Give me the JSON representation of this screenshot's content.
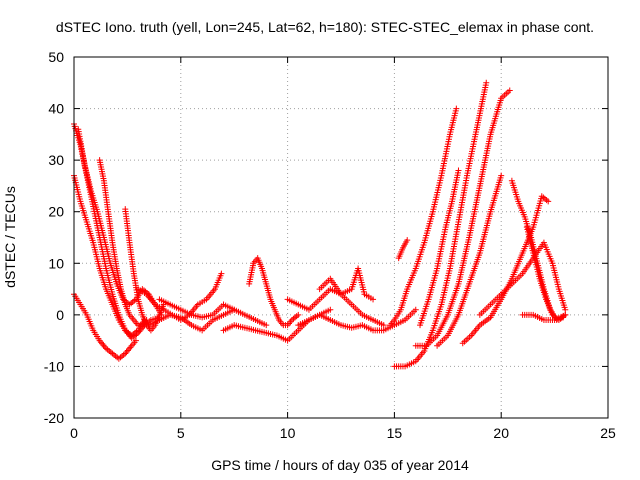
{
  "chart_data": {
    "type": "scatter",
    "title": "dSTEC Iono. truth (yell, Lon=245, Lat=62, h=180): STEC-STEC_elemax in phase cont.",
    "xlabel": "GPS time / hours of day 035 of year 2014",
    "ylabel": "dSTEC  / TECUs",
    "xlim": [
      0,
      25
    ],
    "ylim": [
      -20,
      50
    ],
    "xticks": [
      0,
      5,
      10,
      15,
      20,
      25
    ],
    "yticks": [
      -20,
      -10,
      0,
      10,
      20,
      30,
      40,
      50
    ],
    "grid": true,
    "marker": "+",
    "color": "#ff0000",
    "series": [
      {
        "values": [
          [
            0.0,
            37
          ],
          [
            0.3,
            33
          ],
          [
            0.6,
            27
          ],
          [
            0.9,
            21
          ],
          [
            1.2,
            15
          ],
          [
            1.5,
            9
          ],
          [
            1.8,
            4
          ],
          [
            2.1,
            0
          ],
          [
            2.4,
            -3
          ],
          [
            2.7,
            -4.5
          ],
          [
            3.0,
            -3.5
          ],
          [
            3.3,
            -2
          ],
          [
            3.6,
            -1
          ],
          [
            4.0,
            -0.5
          ]
        ]
      },
      {
        "values": [
          [
            0.0,
            27
          ],
          [
            0.3,
            22
          ],
          [
            0.6,
            18
          ],
          [
            0.9,
            14
          ],
          [
            1.2,
            9
          ],
          [
            1.5,
            5
          ],
          [
            1.8,
            2
          ],
          [
            2.1,
            -1
          ],
          [
            2.4,
            -3
          ],
          [
            2.7,
            -4
          ],
          [
            3.0,
            -3
          ],
          [
            3.3,
            -1
          ]
        ]
      },
      {
        "values": [
          [
            0.2,
            36
          ],
          [
            0.5,
            29
          ],
          [
            0.8,
            24
          ],
          [
            1.1,
            20
          ],
          [
            1.4,
            15
          ],
          [
            1.7,
            10
          ],
          [
            2.0,
            6
          ],
          [
            2.3,
            3
          ],
          [
            2.6,
            2
          ],
          [
            2.9,
            3
          ],
          [
            3.2,
            5
          ],
          [
            3.5,
            4
          ],
          [
            3.8,
            2
          ],
          [
            4.1,
            0
          ]
        ]
      },
      {
        "values": [
          [
            0.0,
            4
          ],
          [
            0.3,
            2
          ],
          [
            0.6,
            0
          ],
          [
            0.9,
            -3
          ],
          [
            1.2,
            -5
          ],
          [
            1.5,
            -6.5
          ],
          [
            1.8,
            -7.5
          ],
          [
            2.1,
            -8.5
          ],
          [
            2.4,
            -7.5
          ],
          [
            2.7,
            -6
          ],
          [
            2.9,
            -5
          ]
        ]
      },
      {
        "values": [
          [
            1.2,
            30
          ],
          [
            1.4,
            26
          ],
          [
            1.6,
            20
          ],
          [
            1.8,
            14
          ],
          [
            2.0,
            9
          ],
          [
            2.2,
            5
          ],
          [
            2.4,
            2
          ],
          [
            2.6,
            0
          ],
          [
            2.8,
            -1
          ],
          [
            3.0,
            -2
          ],
          [
            3.2,
            -2
          ],
          [
            3.4,
            -1
          ]
        ]
      },
      {
        "values": [
          [
            2.4,
            20.5
          ],
          [
            2.6,
            14
          ],
          [
            2.8,
            8
          ],
          [
            3.0,
            3
          ],
          [
            3.2,
            0
          ],
          [
            3.4,
            -2
          ],
          [
            3.6,
            -3
          ],
          [
            3.8,
            -2
          ],
          [
            4.0,
            0
          ],
          [
            4.2,
            2
          ]
        ]
      },
      {
        "values": [
          [
            3.0,
            5
          ],
          [
            3.4,
            4
          ],
          [
            3.8,
            2
          ],
          [
            4.2,
            1
          ],
          [
            4.6,
            0
          ],
          [
            5.0,
            -1
          ],
          [
            5.4,
            0
          ],
          [
            5.8,
            2
          ],
          [
            6.2,
            3
          ],
          [
            6.6,
            5
          ],
          [
            6.9,
            8
          ]
        ]
      },
      {
        "values": [
          [
            3.5,
            -2
          ],
          [
            4.0,
            -1
          ],
          [
            4.5,
            0
          ],
          [
            5.0,
            -0.5
          ],
          [
            5.5,
            -2
          ],
          [
            6.0,
            -3
          ],
          [
            6.5,
            -1
          ],
          [
            7.0,
            0
          ],
          [
            7.5,
            1
          ],
          [
            8.0,
            0
          ],
          [
            8.5,
            -1
          ],
          [
            9.0,
            -2
          ]
        ]
      },
      {
        "values": [
          [
            4.0,
            3
          ],
          [
            4.5,
            2
          ],
          [
            5.0,
            1
          ],
          [
            5.5,
            0
          ],
          [
            6.0,
            -0.5
          ],
          [
            6.5,
            0
          ],
          [
            7.0,
            2
          ],
          [
            7.5,
            1
          ]
        ]
      },
      {
        "values": [
          [
            7.0,
            -3
          ],
          [
            7.5,
            -2
          ],
          [
            8.0,
            -2.5
          ],
          [
            8.5,
            -3
          ],
          [
            9.0,
            -3.5
          ],
          [
            9.5,
            -4
          ],
          [
            10.0,
            -5
          ],
          [
            10.5,
            -3
          ],
          [
            11.0,
            -1
          ],
          [
            11.5,
            0
          ],
          [
            12.0,
            1
          ]
        ]
      },
      {
        "values": [
          [
            8.2,
            6
          ],
          [
            8.4,
            10
          ],
          [
            8.6,
            11
          ],
          [
            8.8,
            9
          ],
          [
            9.0,
            6
          ],
          [
            9.2,
            3
          ],
          [
            9.4,
            1
          ],
          [
            9.6,
            -1
          ],
          [
            9.8,
            -2
          ],
          [
            10.0,
            -2
          ],
          [
            10.2,
            -1
          ],
          [
            10.5,
            0
          ]
        ]
      },
      {
        "values": [
          [
            10.0,
            3
          ],
          [
            10.5,
            2
          ],
          [
            11.0,
            1
          ],
          [
            11.5,
            3
          ],
          [
            12.0,
            5
          ],
          [
            12.5,
            4
          ],
          [
            13.0,
            2
          ],
          [
            13.5,
            0
          ],
          [
            14.0,
            -1
          ],
          [
            14.5,
            -2
          ]
        ]
      },
      {
        "values": [
          [
            10.5,
            -2
          ],
          [
            11.0,
            -1
          ],
          [
            11.5,
            0
          ],
          [
            12.0,
            -1
          ],
          [
            12.5,
            -2
          ],
          [
            13.0,
            -2.5
          ],
          [
            13.5,
            -2
          ],
          [
            14.0,
            -3
          ],
          [
            14.5,
            -3
          ],
          [
            15.0,
            -2
          ],
          [
            15.5,
            -1
          ],
          [
            16.0,
            1
          ]
        ]
      },
      {
        "values": [
          [
            11.5,
            5
          ],
          [
            12.0,
            7
          ],
          [
            12.5,
            4
          ],
          [
            13.0,
            5
          ],
          [
            13.3,
            9
          ],
          [
            13.6,
            4
          ],
          [
            14.0,
            3
          ]
        ]
      },
      {
        "values": [
          [
            15.0,
            -10
          ],
          [
            15.5,
            -10
          ],
          [
            16.0,
            -9
          ],
          [
            16.4,
            -7
          ],
          [
            16.8,
            -3
          ],
          [
            17.2,
            2
          ],
          [
            17.6,
            9
          ],
          [
            18.0,
            18
          ],
          [
            18.4,
            27
          ],
          [
            18.8,
            35
          ],
          [
            19.3,
            45
          ]
        ]
      },
      {
        "values": [
          [
            14.8,
            -2
          ],
          [
            15.0,
            -1
          ],
          [
            15.3,
            1
          ],
          [
            15.6,
            5
          ],
          [
            16.0,
            9
          ],
          [
            16.4,
            14
          ],
          [
            16.8,
            20
          ],
          [
            17.2,
            27
          ],
          [
            17.6,
            35
          ],
          [
            17.9,
            40
          ]
        ]
      },
      {
        "values": [
          [
            15.2,
            11
          ],
          [
            15.4,
            13
          ],
          [
            15.6,
            14.5
          ]
        ]
      },
      {
        "values": [
          [
            16.2,
            -2
          ],
          [
            16.6,
            3
          ],
          [
            17.0,
            9
          ],
          [
            17.4,
            17
          ],
          [
            17.7,
            22
          ],
          [
            18.0,
            28
          ]
        ]
      },
      {
        "values": [
          [
            16.0,
            -6
          ],
          [
            16.5,
            -6
          ],
          [
            17.0,
            -4
          ],
          [
            17.5,
            0
          ],
          [
            18.0,
            6
          ],
          [
            18.5,
            15
          ],
          [
            19.0,
            25
          ],
          [
            19.5,
            35
          ],
          [
            20.0,
            42
          ],
          [
            20.4,
            43.5
          ]
        ]
      },
      {
        "values": [
          [
            17.0,
            -6
          ],
          [
            17.5,
            -4
          ],
          [
            18.0,
            0
          ],
          [
            18.5,
            6
          ],
          [
            19.0,
            12
          ],
          [
            19.5,
            20
          ],
          [
            20.0,
            27
          ]
        ]
      },
      {
        "values": [
          [
            18.2,
            -5.5
          ],
          [
            18.6,
            -4
          ],
          [
            19.0,
            -2
          ],
          [
            19.5,
            -0.5
          ],
          [
            20.0,
            3
          ],
          [
            20.5,
            7
          ],
          [
            21.0,
            12
          ],
          [
            21.5,
            17
          ],
          [
            21.9,
            23
          ],
          [
            22.2,
            22
          ]
        ]
      },
      {
        "values": [
          [
            20.5,
            26
          ],
          [
            20.8,
            22
          ],
          [
            21.1,
            19
          ],
          [
            21.4,
            15
          ],
          [
            21.7,
            10
          ],
          [
            22.0,
            5
          ],
          [
            22.3,
            1
          ],
          [
            22.6,
            -1
          ],
          [
            22.9,
            -0.5
          ]
        ]
      },
      {
        "values": [
          [
            21.2,
            17
          ],
          [
            21.5,
            12
          ],
          [
            21.8,
            7
          ],
          [
            22.1,
            3
          ],
          [
            22.4,
            0
          ],
          [
            22.7,
            -1
          ],
          [
            23.0,
            0
          ]
        ]
      },
      {
        "values": [
          [
            19.0,
            0
          ],
          [
            19.5,
            2
          ],
          [
            20.0,
            4
          ],
          [
            20.5,
            6
          ],
          [
            21.0,
            8
          ],
          [
            21.5,
            11
          ],
          [
            22.0,
            14
          ],
          [
            22.4,
            10
          ],
          [
            22.7,
            5
          ],
          [
            23.0,
            1
          ]
        ]
      },
      {
        "values": [
          [
            21.0,
            0
          ],
          [
            21.5,
            0
          ],
          [
            22.0,
            -1
          ],
          [
            22.5,
            -1
          ],
          [
            23.0,
            0
          ]
        ]
      }
    ]
  }
}
